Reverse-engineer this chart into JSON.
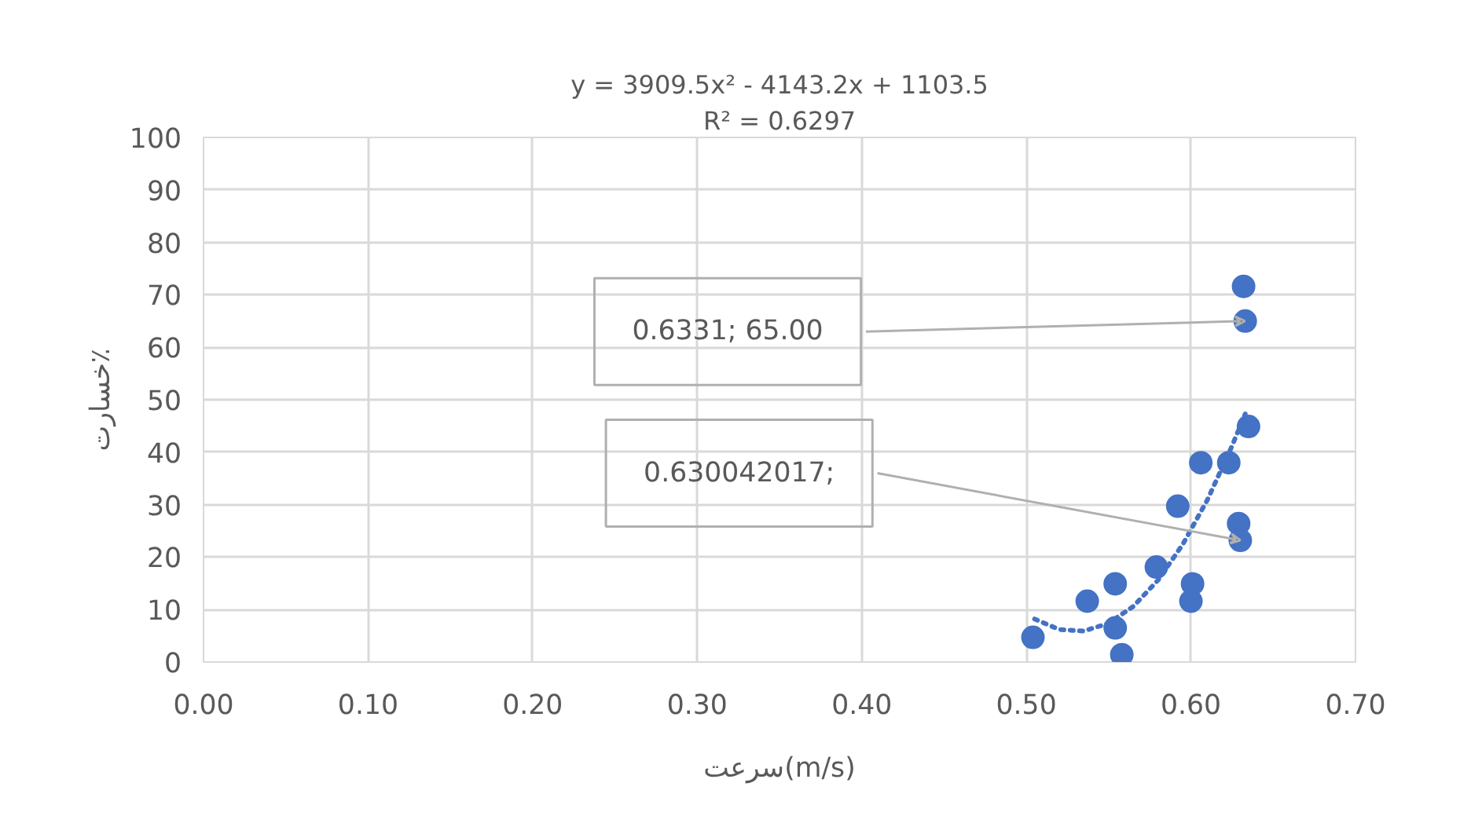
{
  "chart_data": {
    "type": "scatter",
    "xlabel": "سرعت(m/s)",
    "ylabel": "خسارت٪",
    "xlim": [
      0,
      0.7
    ],
    "xticks": [
      {
        "value": 0,
        "label": "0.00"
      },
      {
        "value": 0.1,
        "label": "0.10"
      },
      {
        "value": 0.2,
        "label": "0.20"
      },
      {
        "value": 0.3,
        "label": "0.30"
      },
      {
        "value": 0.4,
        "label": "0.40"
      },
      {
        "value": 0.5,
        "label": "0.50"
      },
      {
        "value": 0.6,
        "label": "0.60"
      },
      {
        "value": 0.7,
        "label": "0.70"
      }
    ],
    "ylim": [
      0,
      100
    ],
    "yticks": [
      0,
      10,
      20,
      30,
      40,
      50,
      60,
      70,
      80,
      90,
      100
    ],
    "grid": true,
    "marker": "circle",
    "series": [
      {
        "type": "scatter",
        "color": "#4472c4",
        "x": [
          0.504,
          0.537,
          0.554,
          0.554,
          0.558,
          0.579,
          0.592,
          0.601,
          0.6,
          0.606,
          0.623,
          0.629,
          0.63,
          0.632,
          0.633,
          0.635
        ],
        "values": [
          4.7,
          11.6,
          14.9,
          6.5,
          1.4,
          18.1,
          29.7,
          14.9,
          11.6,
          38,
          38,
          26.4,
          23.2,
          71.6,
          65,
          44.9
        ]
      },
      {
        "type": "line",
        "line_style": "dotted",
        "marker": "none",
        "color": "#4472c4",
        "x": [
          0.505,
          0.52,
          0.535,
          0.55,
          0.565,
          0.58,
          0.595,
          0.61,
          0.625,
          0.633
        ],
        "values": [
          8.2,
          6.2,
          5.9,
          7.4,
          10.6,
          15.6,
          22.4,
          30.9,
          41.2,
          47.3
        ]
      }
    ],
    "annotations": [
      "y = 3909.5x² - 4143.2x + 1103.5",
      "R² = 0.6297",
      "0.6331; 65.00",
      "0.630042017;"
    ]
  }
}
